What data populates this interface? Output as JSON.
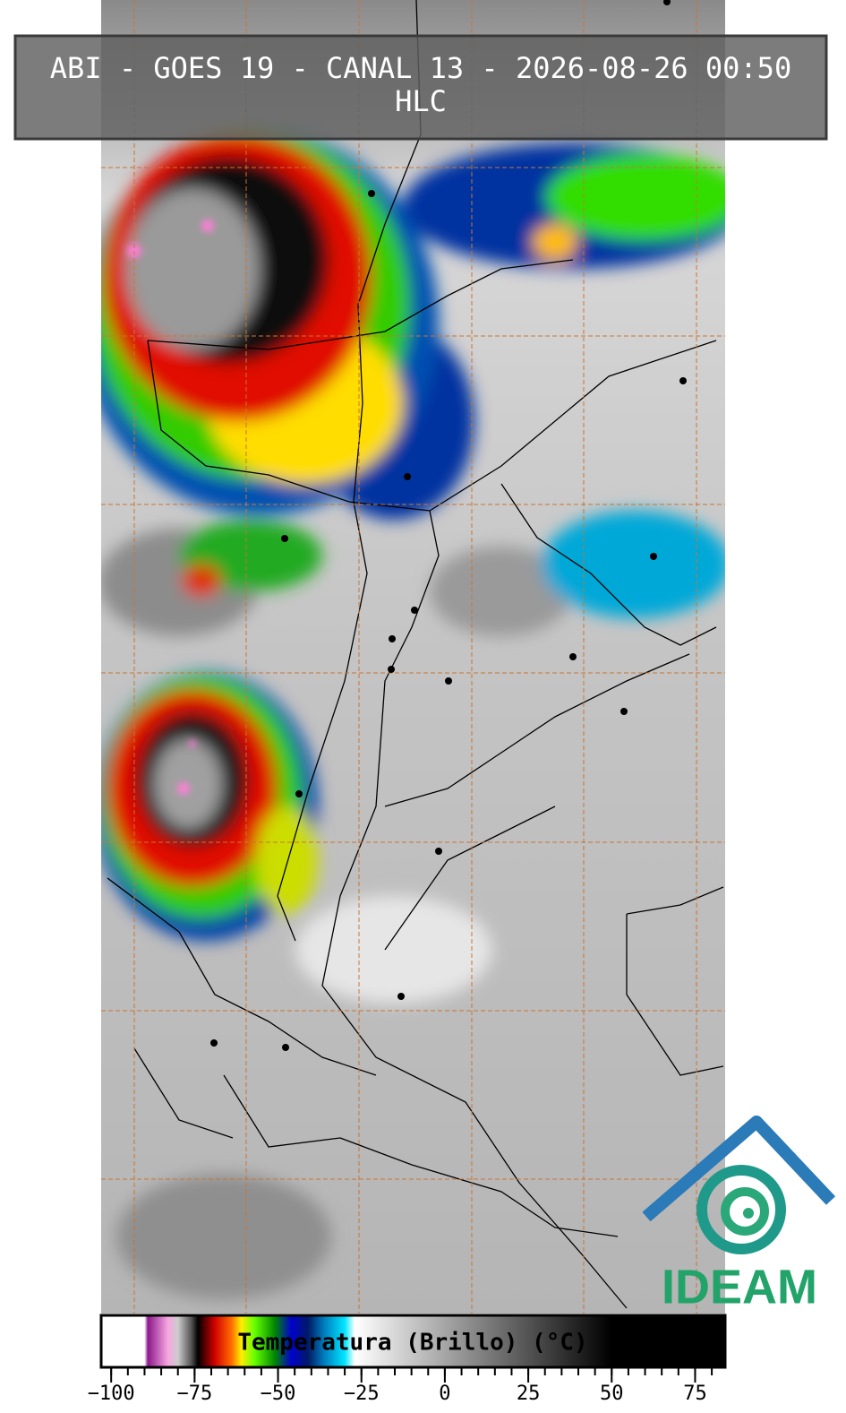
{
  "header": {
    "title": "ABI - GOES 19 - CANAL 13 - 2026-08-26 00:50",
    "subtitle": "HLC"
  },
  "colorbar": {
    "label": "Temperatura (Brillo) (°C)",
    "range": [
      -103,
      84
    ],
    "ticks": [
      {
        "value": -100,
        "label": "−100"
      },
      {
        "value": -75,
        "label": "−75"
      },
      {
        "value": -50,
        "label": "−50"
      },
      {
        "value": -25,
        "label": "−25"
      },
      0,
      25,
      50,
      75
    ],
    "stops": [
      {
        "value": -103,
        "color": "#ffffff"
      },
      {
        "value": -90,
        "color": "#ffffff"
      },
      {
        "value": -89,
        "color": "#8b1a8b"
      },
      {
        "value": -83,
        "color": "#f7a6e0"
      },
      {
        "value": -80,
        "color": "#cccccc"
      },
      {
        "value": -76,
        "color": "#555555"
      },
      {
        "value": -74,
        "color": "#000000"
      },
      {
        "value": -69,
        "color": "#d00000"
      },
      {
        "value": -64,
        "color": "#ff6a00"
      },
      {
        "value": -61,
        "color": "#ffee00"
      },
      {
        "value": -57,
        "color": "#66ff00"
      },
      {
        "value": -51,
        "color": "#008800"
      },
      {
        "value": -46,
        "color": "#0000cc"
      },
      {
        "value": -41,
        "color": "#001a66"
      },
      {
        "value": -36,
        "color": "#0080c0"
      },
      {
        "value": -30,
        "color": "#00e5ff"
      },
      {
        "value": -27,
        "color": "#ffffff"
      },
      {
        "value": 50,
        "color": "#000000"
      },
      {
        "value": 84,
        "color": "#000000"
      }
    ]
  },
  "logo": {
    "text": "IDEAM"
  }
}
